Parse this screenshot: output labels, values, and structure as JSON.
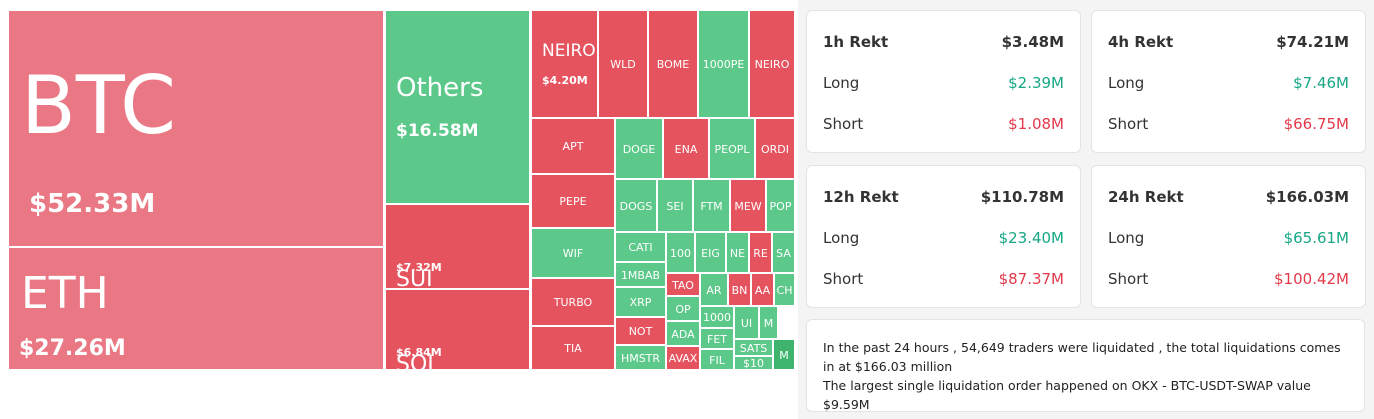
{
  "treemap": {
    "tiles": [
      {
        "label": "BTC",
        "value": "$52.33M",
        "color": "#ea7884"
      },
      {
        "label": "ETH",
        "value": "$27.26M",
        "color": "#ea7884"
      },
      {
        "label": "Others",
        "value": "$16.58M",
        "color": "#5cc98a"
      },
      {
        "label": "SUI",
        "value": "$7.32M",
        "color": "#e5535f"
      },
      {
        "label": "SOL",
        "value": "$6.84M",
        "color": "#e5535f"
      },
      {
        "label": "NEIRO",
        "value": "$4.20M",
        "color": "#e5535f"
      },
      {
        "label": "WLD",
        "color": "#e5535f"
      },
      {
        "label": "BOME",
        "color": "#e5535f"
      },
      {
        "label": "1000PE",
        "color": "#5cc98a"
      },
      {
        "label": "NEIRO",
        "color": "#e5535f"
      },
      {
        "label": "APT",
        "color": "#e5535f"
      },
      {
        "label": "PEPE",
        "color": "#e5535f"
      },
      {
        "label": "WIF",
        "color": "#5cc98a"
      },
      {
        "label": "TURBO",
        "color": "#e5535f"
      },
      {
        "label": "TIA",
        "color": "#e5535f"
      },
      {
        "label": "DOGE",
        "color": "#5cc98a"
      },
      {
        "label": "ENA",
        "color": "#e5535f"
      },
      {
        "label": "PEOPL",
        "color": "#5cc98a"
      },
      {
        "label": "ORDI",
        "color": "#e5535f"
      },
      {
        "label": "DOGS",
        "color": "#5cc98a"
      },
      {
        "label": "SEI",
        "color": "#5cc98a"
      },
      {
        "label": "FTM",
        "color": "#5cc98a"
      },
      {
        "label": "MEW",
        "color": "#e5535f"
      },
      {
        "label": "POP",
        "color": "#5cc98a"
      },
      {
        "label": "CATI",
        "color": "#5cc98a"
      },
      {
        "label": "100",
        "color": "#5cc98a"
      },
      {
        "label": "EIG",
        "color": "#5cc98a"
      },
      {
        "label": "NE",
        "color": "#5cc98a"
      },
      {
        "label": "RE",
        "color": "#e5535f"
      },
      {
        "label": "SA",
        "color": "#5cc98a"
      },
      {
        "label": "1MBAB",
        "color": "#5cc98a"
      },
      {
        "label": "XRP",
        "color": "#5cc98a"
      },
      {
        "label": "NOT",
        "color": "#e5535f"
      },
      {
        "label": "HMSTR",
        "color": "#5cc98a"
      },
      {
        "label": "TAO",
        "color": "#e5535f"
      },
      {
        "label": "AR",
        "color": "#5cc98a"
      },
      {
        "label": "BN",
        "color": "#e5535f"
      },
      {
        "label": "AA",
        "color": "#e5535f"
      },
      {
        "label": "CH",
        "color": "#5cc98a"
      },
      {
        "label": "OP",
        "color": "#5cc98a"
      },
      {
        "label": "ADA",
        "color": "#5cc98a"
      },
      {
        "label": "AVAX",
        "color": "#e5535f"
      },
      {
        "label": "1000",
        "color": "#5cc98a"
      },
      {
        "label": "FET",
        "color": "#5cc98a"
      },
      {
        "label": "FIL",
        "color": "#5cc98a"
      },
      {
        "label": "UI",
        "color": "#5cc98a"
      },
      {
        "label": "M",
        "color": "#5cc98a"
      },
      {
        "label": "SATS",
        "color": "#5cc98a"
      },
      {
        "label": "$10",
        "color": "#5cc98a"
      },
      {
        "label": "M",
        "color": "#3fb46f"
      }
    ]
  },
  "cards": [
    {
      "title": "1h Rekt",
      "total": "$3.48M",
      "long_label": "Long",
      "long": "$2.39M",
      "short_label": "Short",
      "short": "$1.08M"
    },
    {
      "title": "4h Rekt",
      "total": "$74.21M",
      "long_label": "Long",
      "long": "$7.46M",
      "short_label": "Short",
      "short": "$66.75M"
    },
    {
      "title": "12h Rekt",
      "total": "$110.78M",
      "long_label": "Long",
      "long": "$23.40M",
      "short_label": "Short",
      "short": "$87.37M"
    },
    {
      "title": "24h Rekt",
      "total": "$166.03M",
      "long_label": "Long",
      "long": "$65.61M",
      "short_label": "Short",
      "short": "$100.42M"
    }
  ],
  "summary": {
    "lines": [
      "In the past 24 hours , 54,649 traders were liquidated , the total liquidations comes in at $166.03 million",
      "The largest single liquidation order happened on OKX - BTC-USDT-SWAP value $9.59M"
    ]
  }
}
